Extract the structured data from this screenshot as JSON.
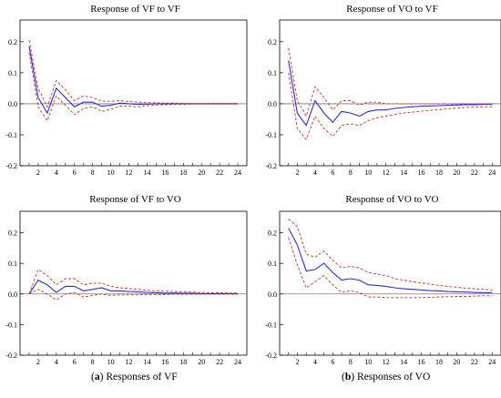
{
  "captions": {
    "a_letter": "a",
    "a_text": "Responses of VF",
    "b_letter": "b",
    "b_text": "Responses of VO"
  },
  "colors": {
    "response": "#2c2cd6",
    "band": "#c0392b",
    "zero": "#7a7a7a",
    "frame": "#000000"
  },
  "chart_data": [
    {
      "type": "line",
      "title": "Response of VF to VF",
      "x": [
        1,
        2,
        3,
        4,
        5,
        6,
        7,
        8,
        9,
        10,
        11,
        12,
        13,
        14,
        15,
        16,
        17,
        18,
        19,
        20,
        21,
        22,
        23,
        24
      ],
      "xticks": [
        2,
        4,
        6,
        8,
        10,
        12,
        14,
        16,
        18,
        20,
        22,
        24
      ],
      "yticks": [
        -0.2,
        -0.1,
        0.0,
        0.1,
        0.2
      ],
      "ylim": [
        -0.2,
        0.27
      ],
      "xlim": [
        0,
        25
      ],
      "series": [
        {
          "role": "response",
          "values": [
            0.185,
            0.02,
            -0.03,
            0.05,
            0.02,
            -0.01,
            0.005,
            0.005,
            -0.008,
            -0.005,
            0.002,
            0.0,
            -0.002,
            -0.001,
            0,
            0,
            0,
            0,
            0,
            0,
            0,
            0,
            0,
            0
          ]
        },
        {
          "role": "upper",
          "values": [
            0.205,
            0.05,
            -0.01,
            0.075,
            0.045,
            0.01,
            0.025,
            0.02,
            0.008,
            0.008,
            0.01,
            0.007,
            0.005,
            0.004,
            0.003,
            0.002,
            0.002,
            0.001,
            0.001,
            0.001,
            0.001,
            0.001,
            0.001,
            0.001
          ]
        },
        {
          "role": "lower",
          "values": [
            0.165,
            -0.01,
            -0.055,
            0.025,
            -0.005,
            -0.035,
            -0.015,
            -0.01,
            -0.025,
            -0.018,
            -0.008,
            -0.008,
            -0.01,
            -0.006,
            -0.004,
            -0.003,
            -0.002,
            -0.002,
            -0.001,
            -0.001,
            -0.001,
            -0.001,
            -0.001,
            -0.001
          ]
        }
      ]
    },
    {
      "type": "line",
      "title": "Response of VO to VF",
      "x": [
        1,
        2,
        3,
        4,
        5,
        6,
        7,
        8,
        9,
        10,
        11,
        12,
        13,
        14,
        15,
        16,
        17,
        18,
        19,
        20,
        21,
        22,
        23,
        24
      ],
      "xticks": [
        2,
        4,
        6,
        8,
        10,
        12,
        14,
        16,
        18,
        20,
        22,
        24
      ],
      "yticks": [
        -0.2,
        -0.1,
        0.0,
        0.1,
        0.2
      ],
      "ylim": [
        -0.2,
        0.27
      ],
      "xlim": [
        0,
        25
      ],
      "series": [
        {
          "role": "response",
          "values": [
            0.14,
            -0.03,
            -0.07,
            0.01,
            -0.03,
            -0.06,
            -0.025,
            -0.03,
            -0.04,
            -0.025,
            -0.02,
            -0.02,
            -0.015,
            -0.012,
            -0.01,
            -0.008,
            -0.007,
            -0.006,
            -0.005,
            -0.004,
            -0.003,
            -0.003,
            -0.002,
            -0.002
          ]
        },
        {
          "role": "upper",
          "values": [
            0.18,
            0.01,
            -0.04,
            0.055,
            0.02,
            -0.02,
            0.01,
            0.01,
            -0.005,
            0.005,
            0.005,
            0.0,
            0.0,
            0.0,
            0.0,
            0.0,
            0.0,
            0.0,
            0.0,
            0.0,
            0.0,
            0.0,
            0.0,
            0.0
          ]
        },
        {
          "role": "lower",
          "values": [
            0.1,
            -0.08,
            -0.115,
            -0.04,
            -0.08,
            -0.105,
            -0.07,
            -0.065,
            -0.07,
            -0.055,
            -0.045,
            -0.04,
            -0.035,
            -0.03,
            -0.027,
            -0.024,
            -0.021,
            -0.019,
            -0.016,
            -0.014,
            -0.012,
            -0.011,
            -0.01,
            -0.009
          ]
        }
      ]
    },
    {
      "type": "line",
      "title": "Response of VF to VO",
      "x": [
        1,
        2,
        3,
        4,
        5,
        6,
        7,
        8,
        9,
        10,
        11,
        12,
        13,
        14,
        15,
        16,
        17,
        18,
        19,
        20,
        21,
        22,
        23,
        24
      ],
      "xticks": [
        2,
        4,
        6,
        8,
        10,
        12,
        14,
        16,
        18,
        20,
        22,
        24
      ],
      "yticks": [
        -0.2,
        -0.1,
        0.0,
        0.1,
        0.2
      ],
      "ylim": [
        -0.2,
        0.27
      ],
      "xlim": [
        0,
        25
      ],
      "series": [
        {
          "role": "response",
          "values": [
            0.0,
            0.045,
            0.03,
            0.005,
            0.025,
            0.025,
            0.01,
            0.015,
            0.02,
            0.01,
            0.01,
            0.008,
            0.007,
            0.005,
            0.004,
            0.003,
            0.003,
            0.002,
            0.002,
            0.001,
            0.001,
            0.001,
            0.001,
            0.001
          ]
        },
        {
          "role": "upper",
          "values": [
            0.0,
            0.08,
            0.06,
            0.03,
            0.05,
            0.05,
            0.03,
            0.035,
            0.035,
            0.025,
            0.02,
            0.018,
            0.015,
            0.012,
            0.01,
            0.009,
            0.008,
            0.007,
            0.006,
            0.005,
            0.004,
            0.004,
            0.003,
            0.003
          ]
        },
        {
          "role": "lower",
          "values": [
            0.0,
            0.015,
            0.0,
            -0.02,
            0.0,
            0.005,
            -0.01,
            -0.005,
            0.0,
            -0.005,
            -0.003,
            -0.003,
            -0.003,
            -0.002,
            -0.002,
            -0.002,
            -0.001,
            -0.001,
            -0.001,
            -0.001,
            -0.001,
            -0.001,
            -0.001,
            -0.001
          ]
        }
      ]
    },
    {
      "type": "line",
      "title": "Response of VO to VO",
      "x": [
        1,
        2,
        3,
        4,
        5,
        6,
        7,
        8,
        9,
        10,
        11,
        12,
        13,
        14,
        15,
        16,
        17,
        18,
        19,
        20,
        21,
        22,
        23,
        24
      ],
      "xticks": [
        2,
        4,
        6,
        8,
        10,
        12,
        14,
        16,
        18,
        20,
        22,
        24
      ],
      "yticks": [
        -0.2,
        -0.1,
        0.0,
        0.1,
        0.2
      ],
      "ylim": [
        -0.2,
        0.27
      ],
      "xlim": [
        0,
        25
      ],
      "series": [
        {
          "role": "response",
          "values": [
            0.215,
            0.16,
            0.075,
            0.08,
            0.1,
            0.07,
            0.045,
            0.05,
            0.045,
            0.03,
            0.028,
            0.025,
            0.02,
            0.017,
            0.015,
            0.013,
            0.011,
            0.01,
            0.008,
            0.007,
            0.006,
            0.005,
            0.004,
            0.004
          ]
        },
        {
          "role": "upper",
          "values": [
            0.245,
            0.22,
            0.13,
            0.12,
            0.14,
            0.11,
            0.085,
            0.09,
            0.085,
            0.07,
            0.065,
            0.06,
            0.05,
            0.045,
            0.04,
            0.036,
            0.032,
            0.028,
            0.025,
            0.022,
            0.019,
            0.017,
            0.015,
            0.013
          ]
        },
        {
          "role": "lower",
          "values": [
            0.185,
            0.095,
            0.02,
            0.04,
            0.06,
            0.03,
            0.005,
            0.01,
            0.005,
            -0.01,
            -0.01,
            -0.012,
            -0.012,
            -0.012,
            -0.012,
            -0.012,
            -0.011,
            -0.01,
            -0.009,
            -0.008,
            -0.008,
            -0.007,
            -0.006,
            -0.006
          ]
        }
      ]
    }
  ]
}
